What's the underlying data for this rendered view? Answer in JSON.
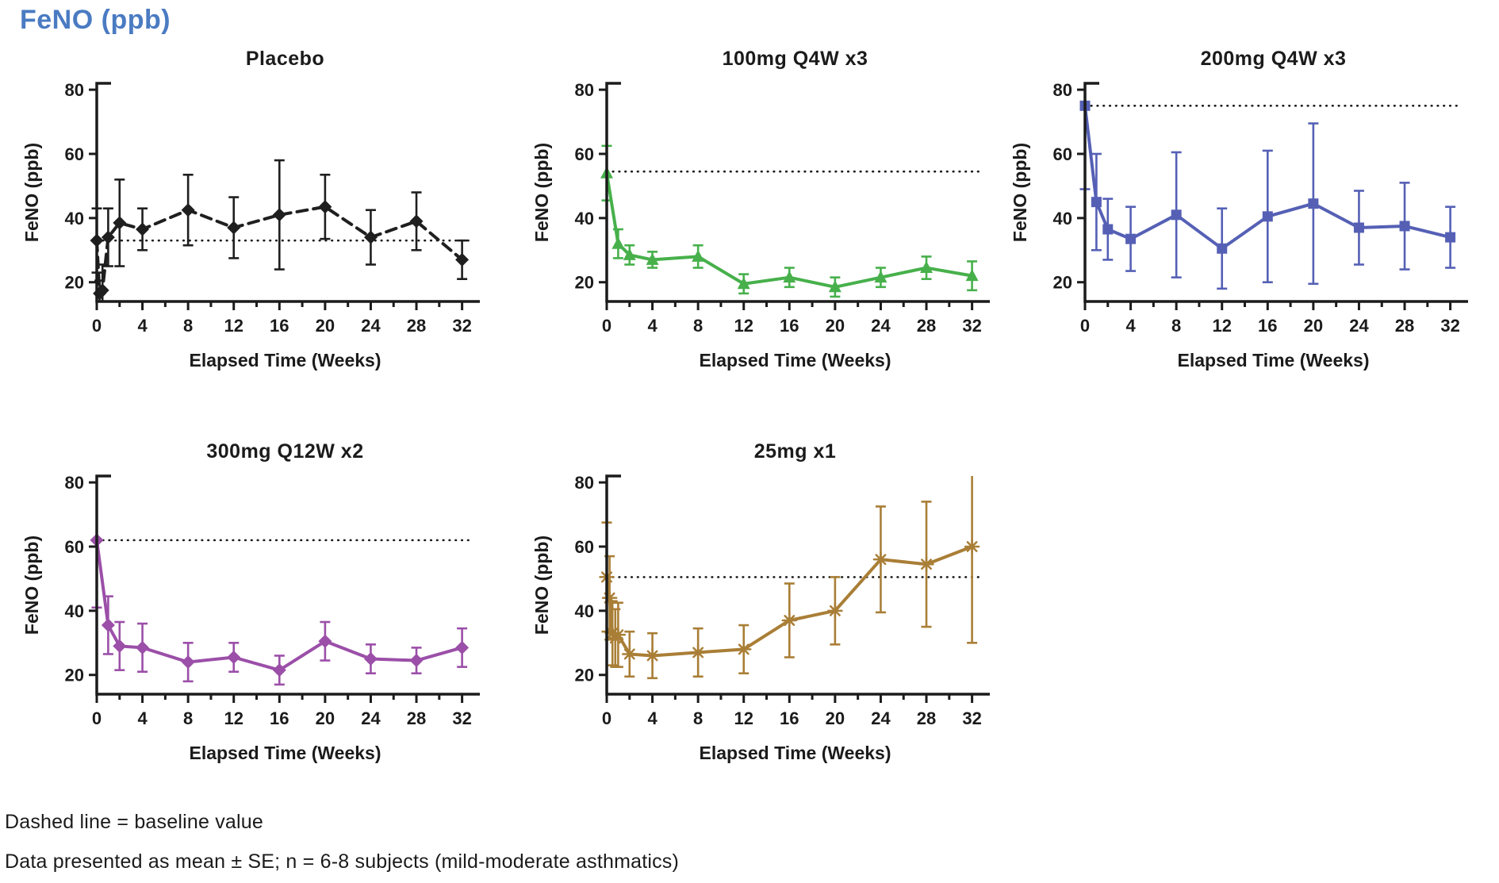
{
  "page": {
    "title": "FeNO (ppb)",
    "title_color": "#4A7BC2",
    "footnotes": [
      "Dashed line = baseline value",
      "Data presented as mean ± SE; n = 6-8 subjects (mild-moderate asthmatics)"
    ]
  },
  "chart_data": [
    {
      "type": "line",
      "title": "Placebo",
      "color": "#1f1f1f",
      "title_color": "#262626",
      "marker": "diamond",
      "line_style": "dashed",
      "baseline": 33,
      "xlabel": "Elapsed Time (Weeks)",
      "ylabel": "FeNO (ppb)",
      "xlim": [
        0,
        32
      ],
      "ylim": [
        14,
        82
      ],
      "yticks": [
        20,
        40,
        60,
        80
      ],
      "xticks": [
        0,
        4,
        8,
        12,
        16,
        20,
        24,
        28,
        32
      ],
      "xticks_minor_step": 2,
      "x": [
        0,
        0.25,
        0.5,
        1,
        2,
        4,
        8,
        12,
        16,
        20,
        24,
        28,
        32
      ],
      "y": [
        33,
        16.5,
        17.5,
        34,
        38.5,
        36.5,
        42.5,
        37,
        41,
        43.5,
        34,
        39,
        27
      ],
      "se": [
        10,
        4,
        8,
        9,
        13.5,
        6.5,
        11,
        9.5,
        17,
        10,
        8.5,
        9,
        6
      ]
    },
    {
      "type": "line",
      "title": "100mg Q4W x3",
      "color": "#47B04B",
      "title_color": "#3FAE49",
      "marker": "triangle",
      "line_style": "solid",
      "baseline": 54.5,
      "xlabel": "Elapsed Time (Weeks)",
      "ylabel": "FeNO (ppb)",
      "xlim": [
        0,
        32
      ],
      "ylim": [
        14,
        82
      ],
      "yticks": [
        20,
        40,
        60,
        80
      ],
      "xticks": [
        0,
        4,
        8,
        12,
        16,
        20,
        24,
        28,
        32
      ],
      "xticks_minor_step": 2,
      "x": [
        0,
        1,
        2,
        4,
        8,
        12,
        16,
        20,
        24,
        28,
        32
      ],
      "y": [
        54,
        32,
        28.5,
        27,
        28,
        19.5,
        21.5,
        18.5,
        21.5,
        24.5,
        22
      ],
      "se": [
        8.5,
        4.5,
        3,
        2.5,
        3.5,
        3,
        3,
        3,
        3,
        3.5,
        4.5
      ]
    },
    {
      "type": "line",
      "title": "200mg Q4W x3",
      "color": "#5560B5",
      "title_color": "#5057B0",
      "marker": "square",
      "line_style": "solid",
      "baseline": 75,
      "xlabel": "Elapsed Time (Weeks)",
      "ylabel": "FeNO (ppb)",
      "xlim": [
        0,
        32
      ],
      "ylim": [
        14,
        82
      ],
      "yticks": [
        20,
        40,
        60,
        80
      ],
      "xticks": [
        0,
        4,
        8,
        12,
        16,
        20,
        24,
        28,
        32
      ],
      "xticks_minor_step": 2,
      "x": [
        0,
        1,
        2,
        4,
        8,
        12,
        16,
        20,
        24,
        28,
        32
      ],
      "y": [
        75,
        45,
        36.5,
        33.5,
        41,
        30.5,
        40.5,
        44.5,
        37,
        37.5,
        34
      ],
      "se": [
        26,
        15,
        9.5,
        10,
        19.5,
        12.5,
        20.5,
        25,
        11.5,
        13.5,
        9.5
      ]
    },
    {
      "type": "line",
      "title": "300mg Q12W x2",
      "color": "#9B4FA8",
      "title_color": "#9B4FA8",
      "marker": "diamond",
      "line_style": "solid",
      "baseline": 62,
      "xlabel": "Elapsed Time (Weeks)",
      "ylabel": "FeNO (ppb)",
      "xlim": [
        0,
        32
      ],
      "ylim": [
        14,
        82
      ],
      "yticks": [
        20,
        40,
        60,
        80
      ],
      "xticks": [
        0,
        4,
        8,
        12,
        16,
        20,
        24,
        28,
        32
      ],
      "xticks_minor_step": 2,
      "x": [
        0,
        1,
        2,
        4,
        8,
        12,
        16,
        20,
        24,
        28,
        32
      ],
      "y": [
        62,
        35.5,
        29,
        28.5,
        24,
        25.5,
        21.5,
        30.5,
        25,
        24.5,
        28.5
      ],
      "se": [
        21,
        9,
        7.5,
        7.5,
        6,
        4.5,
        4.5,
        6,
        4.5,
        4,
        6
      ]
    },
    {
      "type": "line",
      "title": "25mg x1",
      "color": "#A97E36",
      "title_color": "#A2532A",
      "marker": "asterisk",
      "line_style": "solid",
      "baseline": 50.5,
      "xlabel": "Elapsed Time (Weeks)",
      "ylabel": "FeNO (ppb)",
      "xlim": [
        0,
        32
      ],
      "ylim": [
        14,
        82
      ],
      "yticks": [
        20,
        40,
        60,
        80
      ],
      "xticks": [
        0,
        4,
        8,
        12,
        16,
        20,
        24,
        28,
        32
      ],
      "xticks_minor_step": 2,
      "x": [
        0,
        0.25,
        0.5,
        0.75,
        1,
        2,
        4,
        8,
        12,
        16,
        20,
        24,
        28,
        32
      ],
      "y": [
        50.5,
        44,
        33,
        31.5,
        32.5,
        26.5,
        26,
        27,
        28,
        37,
        40,
        56,
        54.5,
        60
      ],
      "se": [
        17,
        13,
        10,
        9,
        10,
        7,
        7,
        7.5,
        7.5,
        11.5,
        10.5,
        16.5,
        19.5,
        30
      ]
    }
  ]
}
